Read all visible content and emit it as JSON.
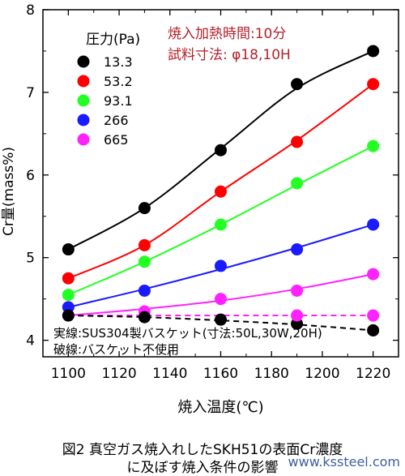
{
  "chart_data": {
    "type": "line",
    "xlabel": "焼入温度(℃)",
    "ylabel": "Cr量(mass%)",
    "xlim": [
      1090,
      1230
    ],
    "ylim": [
      3.8,
      8
    ],
    "xticks": [
      1100,
      1120,
      1140,
      1160,
      1180,
      1200,
      1220
    ],
    "yticks": [
      4,
      5,
      6,
      7,
      8
    ],
    "grid": false,
    "legend": {
      "title": "圧力(Pa)",
      "position": "top-left"
    },
    "annotations": {
      "condition_line1": "焼入加熱時間:10分",
      "condition_line2": "試料寸法: φ18,10H",
      "note_line1": "実線:SUS304製バスケット(寸法:50L,30W,20H)",
      "note_line2": "破線:バスケット不使用"
    },
    "x": [
      1100,
      1130,
      1160,
      1190,
      1220
    ],
    "series": [
      {
        "name": "13.3",
        "color": "#000000",
        "style": "solid",
        "values": [
          5.1,
          5.6,
          6.3,
          7.1,
          7.5
        ],
        "fit": [
          5.1,
          5.6,
          6.32,
          7.05,
          7.5
        ]
      },
      {
        "name": "53.2",
        "color": "#ff0000",
        "style": "solid",
        "values": [
          4.75,
          5.15,
          5.8,
          6.4,
          7.1
        ],
        "fit": [
          4.75,
          5.15,
          5.8,
          6.42,
          7.1
        ]
      },
      {
        "name": "93.1",
        "color": "#22ff22",
        "style": "solid",
        "values": [
          4.55,
          4.95,
          5.4,
          5.9,
          6.35
        ],
        "fit": [
          4.55,
          4.95,
          5.4,
          5.88,
          6.35
        ]
      },
      {
        "name": "266",
        "color": "#1a1aff",
        "style": "solid",
        "values": [
          4.4,
          4.6,
          4.9,
          5.1,
          5.4
        ],
        "fit": [
          4.4,
          4.62,
          4.86,
          5.12,
          5.4
        ]
      },
      {
        "name": "665",
        "color": "#ff22ff",
        "style": "solid",
        "values": [
          4.3,
          4.35,
          4.5,
          4.6,
          4.8
        ],
        "fit": [
          4.3,
          4.38,
          4.48,
          4.62,
          4.8
        ]
      }
    ],
    "dashed_lines": [
      {
        "color": "#ff22ff",
        "x": [
          1100,
          1220
        ],
        "values": [
          4.3,
          4.3
        ]
      },
      {
        "color": "#000000",
        "x": [
          1100,
          1130,
          1160,
          1190,
          1220
        ],
        "values": [
          4.3,
          4.28,
          4.24,
          4.19,
          4.12
        ]
      }
    ],
    "dashed_points": [
      {
        "color": "#000000",
        "x": [
          1100,
          1130,
          1160,
          1190,
          1220
        ],
        "values": [
          4.3,
          4.28,
          4.25,
          4.2,
          4.12
        ]
      },
      {
        "color": "#ff22ff",
        "x": [
          1190,
          1220
        ],
        "values": [
          4.3,
          4.3
        ]
      }
    ]
  },
  "caption": {
    "line1": "図2  真空ガス焼入れしたSKH51の表面Cr濃度",
    "line2": "に及ぼす焼入条件の影響"
  },
  "watermark": "www.kssteel.com"
}
